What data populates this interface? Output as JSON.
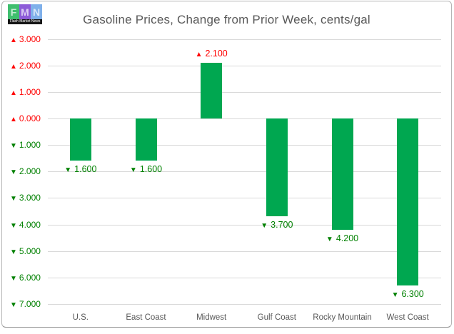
{
  "logo": {
    "letters": [
      {
        "char": "F",
        "bg": "#3fbe6e"
      },
      {
        "char": "M",
        "bg": "#8d5bd8"
      },
      {
        "char": "N",
        "bg": "#7fb0ea"
      }
    ],
    "tagline": "Flash Market News"
  },
  "chart_data": {
    "type": "bar",
    "title": "Gasoline Prices, Change from Prior Week, cents/gal",
    "categories": [
      "U.S.",
      "East Coast",
      "Midwest",
      "Gulf Coast",
      "Rocky Mountain",
      "West Coast"
    ],
    "values": [
      -1.6,
      -1.6,
      2.1,
      -3.7,
      -4.2,
      -6.3
    ],
    "points": [
      {
        "category": "U.S.",
        "value": -1.6,
        "label": "1.600",
        "direction": "down"
      },
      {
        "category": "East Coast",
        "value": -1.6,
        "label": "1.600",
        "direction": "down"
      },
      {
        "category": "Midwest",
        "value": 2.1,
        "label": "2.100",
        "direction": "up"
      },
      {
        "category": "Gulf Coast",
        "value": -3.7,
        "label": "3.700",
        "direction": "down"
      },
      {
        "category": "Rocky Mountain",
        "value": -4.2,
        "label": "4.200",
        "direction": "down"
      },
      {
        "category": "West Coast",
        "value": -6.3,
        "label": "6.300",
        "direction": "down"
      }
    ],
    "y_ticks": [
      {
        "value": 3,
        "label": "3.000",
        "direction": "up"
      },
      {
        "value": 2,
        "label": "2.000",
        "direction": "up"
      },
      {
        "value": 1,
        "label": "1.000",
        "direction": "up"
      },
      {
        "value": 0,
        "label": "0.000",
        "direction": "up"
      },
      {
        "value": -1,
        "label": "1.000",
        "direction": "down"
      },
      {
        "value": -2,
        "label": "2.000",
        "direction": "down"
      },
      {
        "value": -3,
        "label": "3.000",
        "direction": "down"
      },
      {
        "value": -4,
        "label": "4.000",
        "direction": "down"
      },
      {
        "value": -5,
        "label": "5.000",
        "direction": "down"
      },
      {
        "value": -6,
        "label": "6.000",
        "direction": "down"
      },
      {
        "value": -7,
        "label": "7.000",
        "direction": "down"
      }
    ],
    "ylim": [
      -7.9,
      3.0
    ],
    "grid": true,
    "legend": "none",
    "marker_up": "▲",
    "marker_down": "▼",
    "colors": {
      "bar": "#00a750",
      "up": "#ff0000",
      "down": "#008000",
      "gridline": "#d9d9d9",
      "axis_text": "#595959"
    }
  }
}
